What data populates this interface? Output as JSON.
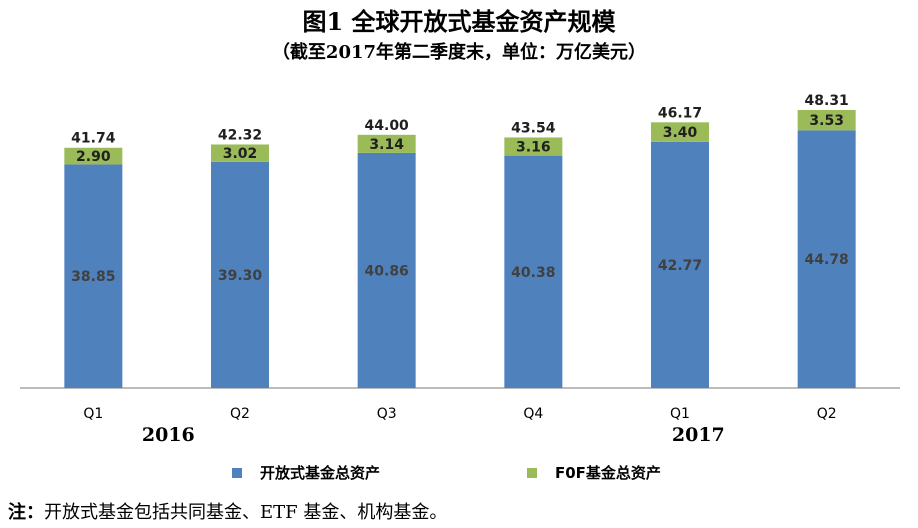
{
  "chart_data": {
    "type": "bar",
    "stacked": true,
    "title": "图1  全球开放式基金资产规模",
    "subtitle": "（截至2017年第二季度末，单位：万亿美元）",
    "categories": [
      "Q1",
      "Q2",
      "Q3",
      "Q4",
      "Q1",
      "Q2"
    ],
    "year_labels": [
      "2016",
      "2017"
    ],
    "series": [
      {
        "name": "开放式基金总资产",
        "color": "#4f81bd",
        "values": [
          38.85,
          39.3,
          40.86,
          40.38,
          42.77,
          44.78
        ]
      },
      {
        "name": "F0F基金总资产",
        "color": "#9bbb59",
        "values": [
          2.9,
          3.02,
          3.14,
          3.16,
          3.4,
          3.53
        ]
      }
    ],
    "totals": [
      41.74,
      42.32,
      44.0,
      43.54,
      46.17,
      48.31
    ],
    "ylim": [
      0,
      48.31
    ],
    "legend_position": "bottom",
    "grid": false
  },
  "legend": {
    "item1": "开放式基金总资产",
    "item2": "F0F基金总资产"
  },
  "note": {
    "prefix": "注：",
    "text": "开放式基金包括共同基金、ETF 基金、机构基金。"
  }
}
